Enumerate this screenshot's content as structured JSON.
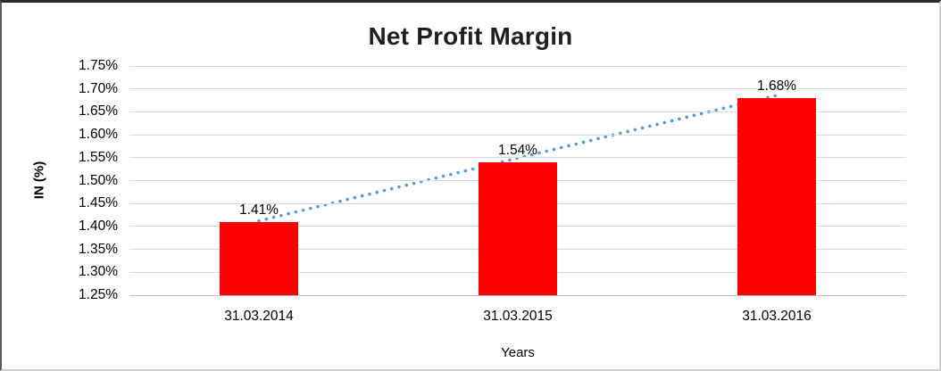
{
  "chart_data": {
    "type": "bar",
    "title": "Net Profit Margin",
    "xlabel": "Years",
    "ylabel": "IN (%)",
    "categories": [
      "31.03.2014",
      "31.03.2015",
      "31.03.2016"
    ],
    "values": [
      1.41,
      1.54,
      1.68
    ],
    "data_labels": [
      "1.41%",
      "1.54%",
      "1.68%"
    ],
    "ylim": [
      1.25,
      1.75
    ],
    "ytick_step": 0.05,
    "ytick_labels": [
      "1.75%",
      "1.70%",
      "1.65%",
      "1.60%",
      "1.55%",
      "1.50%",
      "1.45%",
      "1.40%",
      "1.35%",
      "1.30%",
      "1.25%"
    ],
    "grid": true,
    "legend_position": "none",
    "trendline": {
      "type": "linear",
      "style": "dotted",
      "start_value": 1.412,
      "end_value": 1.686,
      "color": "#5b9bd5"
    },
    "colors": {
      "bar_fill": "#ff0000",
      "gridline": "#d9d9d9",
      "axis_line": "#bfbfbf",
      "title_text": "#1f1f1f",
      "label_text": "#000000"
    }
  }
}
